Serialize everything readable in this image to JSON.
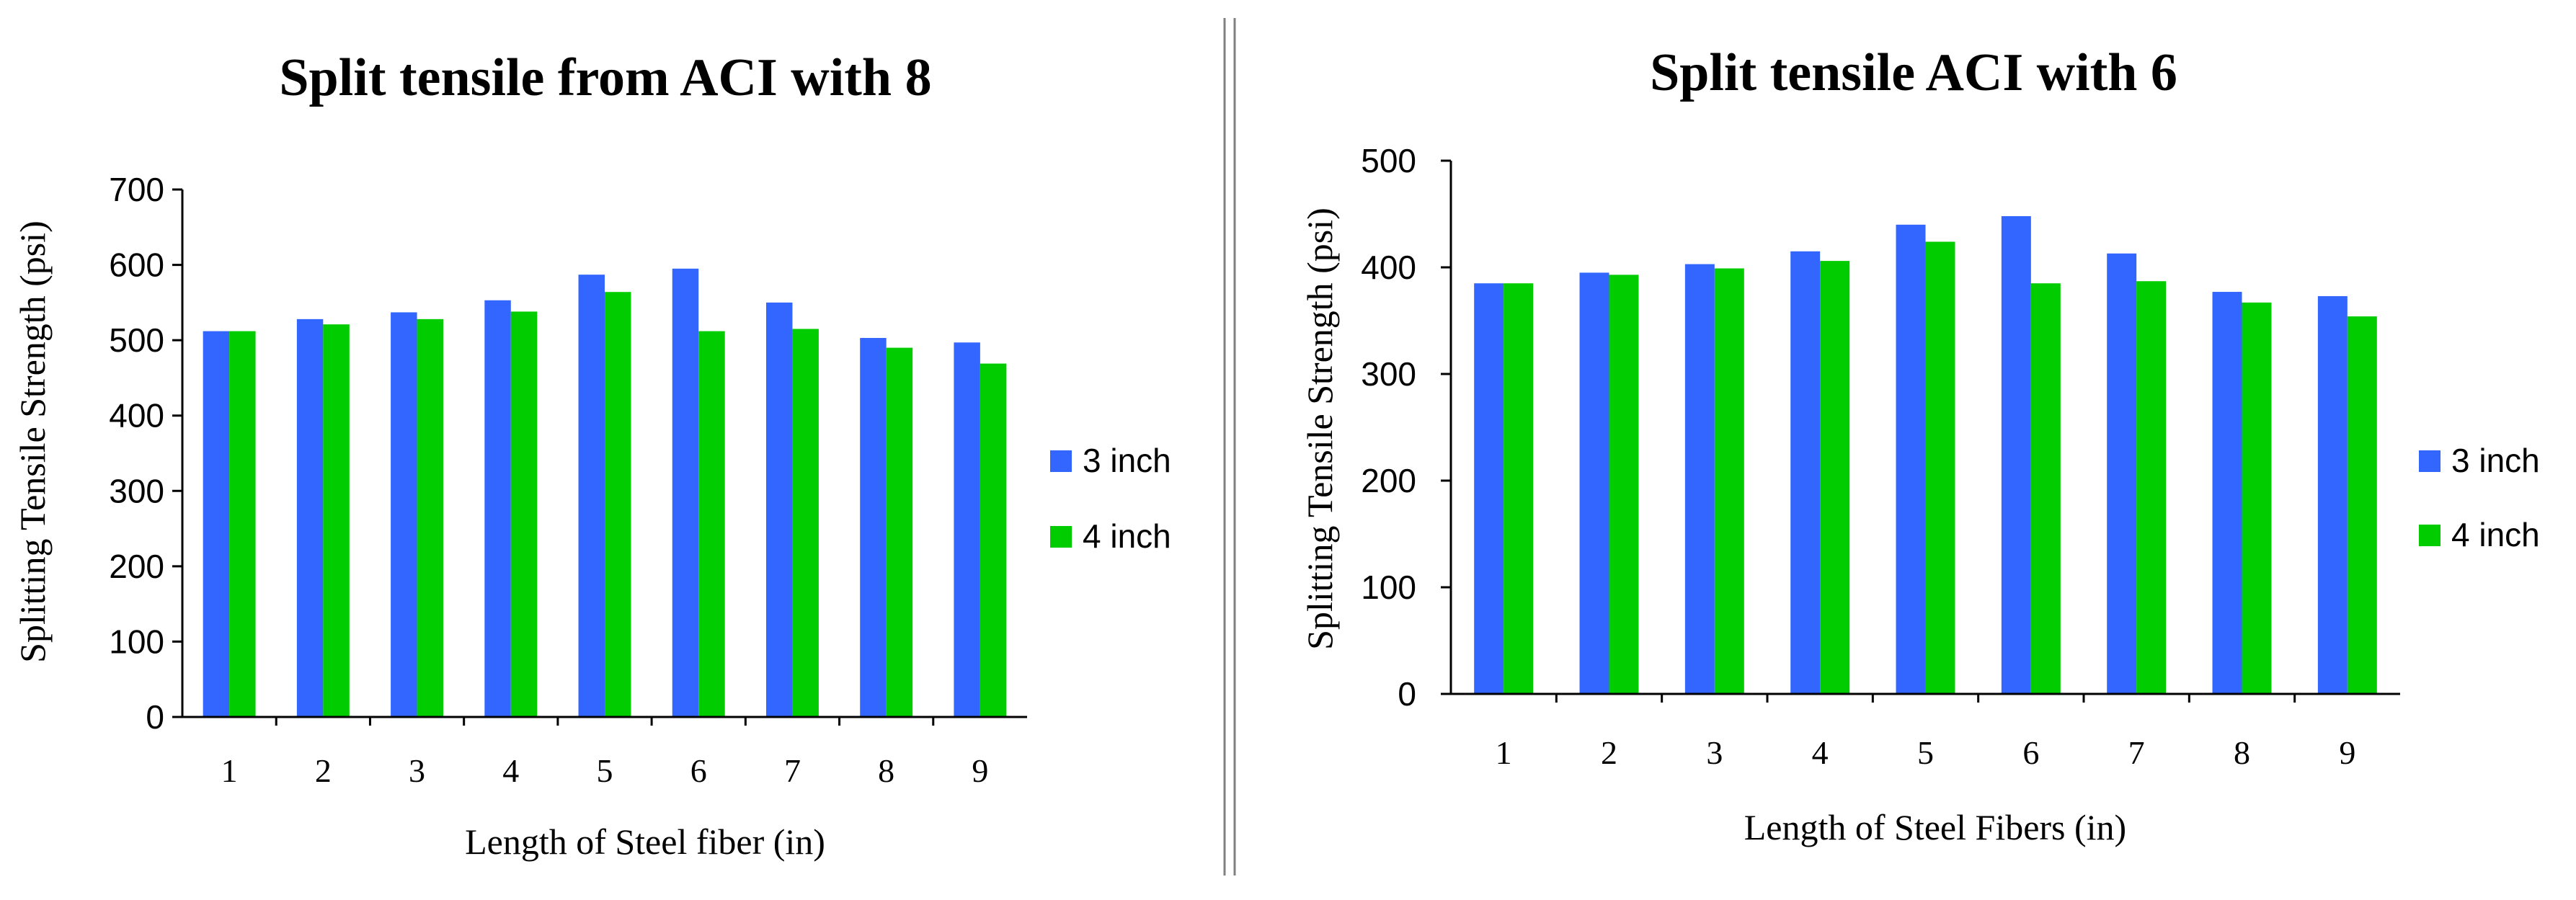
{
  "chart_data": [
    {
      "type": "bar",
      "title": "Split tensile from ACI with 8",
      "xlabel": "Length of Steel fiber (in)",
      "ylabel": "Splitting Tensile Strength (psi)",
      "ylim": [
        0,
        700
      ],
      "yticks": [
        0,
        100,
        200,
        300,
        400,
        500,
        600,
        700
      ],
      "categories": [
        "1",
        "2",
        "3",
        "4",
        "5",
        "6",
        "7",
        "8",
        "9"
      ],
      "series": [
        {
          "name": "3 inch",
          "color": "#3366FF",
          "values": [
            512,
            528,
            537,
            553,
            587,
            595,
            550,
            503,
            497
          ]
        },
        {
          "name": "4 inch",
          "color": "#00CC00",
          "values": [
            512,
            521,
            528,
            538,
            564,
            512,
            515,
            490,
            469
          ]
        }
      ],
      "legend_position": "right"
    },
    {
      "type": "bar",
      "title": "Split tensile ACI with 6",
      "xlabel": "Length of Steel Fibers (in)",
      "ylabel": "Splitting Tensile Strength (psi)",
      "ylim": [
        0,
        500
      ],
      "yticks": [
        0,
        100,
        200,
        300,
        400,
        500
      ],
      "categories": [
        "1",
        "2",
        "3",
        "4",
        "5",
        "6",
        "7",
        "8",
        "9"
      ],
      "series": [
        {
          "name": "3 inch",
          "color": "#3366FF",
          "values": [
            385,
            395,
            403,
            415,
            440,
            448,
            413,
            377,
            373
          ]
        },
        {
          "name": "4 inch",
          "color": "#00CC00",
          "values": [
            385,
            393,
            399,
            406,
            424,
            385,
            387,
            367,
            354
          ]
        }
      ],
      "legend_position": "right"
    }
  ]
}
